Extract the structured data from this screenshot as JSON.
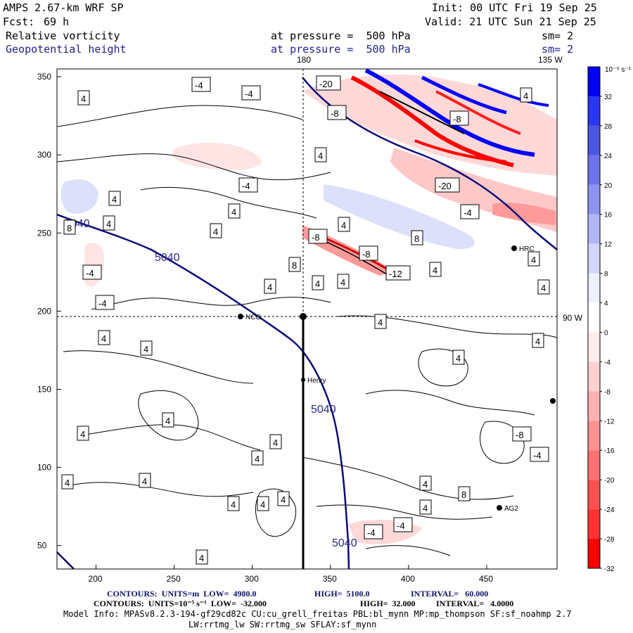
{
  "header": {
    "model": "AMPS 2.67-km WRF SP",
    "init": "Init: 00 UTC Fri 19 Sep 25",
    "fcst_label": "Fcst:",
    "fcst_value": "69 h",
    "valid": "Valid: 21 UTC Sun 21 Sep 25",
    "field1": "Relative vorticity",
    "field1_level": "at pressure =  500 hPa",
    "field1_sm": "sm= 2",
    "field2": "Geopotential height",
    "field2_level": "at pressure =  500 hPa",
    "field2_sm": "sm= 2"
  },
  "map": {
    "top_labels": [
      "180",
      "135 W"
    ],
    "right_label": "90 W",
    "x_ticks": [
      200,
      250,
      300,
      350,
      400,
      450
    ],
    "y_ticks": [
      50,
      100,
      150,
      200,
      250,
      300,
      350
    ],
    "height_contour_label": "5040",
    "sites": [
      {
        "name": "NCG"
      },
      {
        "name": "Henry"
      },
      {
        "name": "HRC"
      },
      {
        "name": "AG2"
      }
    ],
    "vort_labels_4": [
      "4",
      "4",
      "4",
      "4",
      "4",
      "4",
      "4",
      "4",
      "4",
      "4",
      "4",
      "4",
      "4",
      "4",
      "4",
      "4",
      "4",
      "4",
      "4",
      "4",
      "4",
      "4",
      "4",
      "4",
      "4",
      "4",
      "4",
      "4",
      "4",
      "4",
      "4"
    ],
    "vort_labels_neg4": [
      "-4",
      "-4",
      "-4",
      "-4",
      "-4",
      "-4",
      "-4",
      "-4",
      "-4"
    ],
    "vort_labels_8": [
      "8",
      "8",
      "8",
      "8"
    ],
    "vort_labels_neg8": [
      "-8",
      "-8",
      "-8",
      "-8",
      "-8"
    ],
    "vort_labels_neg12": [
      "-12"
    ],
    "vort_labels_neg20": [
      "-20",
      "-20"
    ]
  },
  "colorbar": {
    "unit": "10⁻⁵ s⁻¹",
    "labels": [
      "32",
      "28",
      "24",
      "20",
      "16",
      "12",
      "8",
      "4",
      "0",
      "-4",
      "-8",
      "-12",
      "-16",
      "-20",
      "-24",
      "-28",
      "-32"
    ],
    "colors": [
      "#0000ff",
      "#2a36f2",
      "#4a55e0",
      "#6a73e8",
      "#8d94f0",
      "#b0b6f5",
      "#d2d6fb",
      "#eef0ff",
      "#ffffff",
      "#ffecec",
      "#ffd0d0",
      "#ffb0b0",
      "#ff9090",
      "#ff7070",
      "#ff5050",
      "#ff3030",
      "#ff0000"
    ]
  },
  "footer": {
    "line1_left": "CONTOURS:  UNITS=m  LOW=  4980.0",
    "line1_mid": "HIGH=  5100.0",
    "line1_right": "INTERVAL=   60.000",
    "line2_left": "CONTOURS:  UNITS=10⁻⁵ s⁻¹  LOW=  -32.000",
    "line2_mid": "HIGH=  32.000",
    "line2_right": "INTERVAL=   4.0000",
    "line3": "Model Info: MPASv8.2.3-194-gf29cd82c CU:cu_grell_freitas PBL:bl_mynn MP:mp_thompson SF:sf_noahmp 2.7",
    "line4": "LW:rrtmg_lw SW:rrtmg_sw SFLAY:sf_mynn"
  }
}
